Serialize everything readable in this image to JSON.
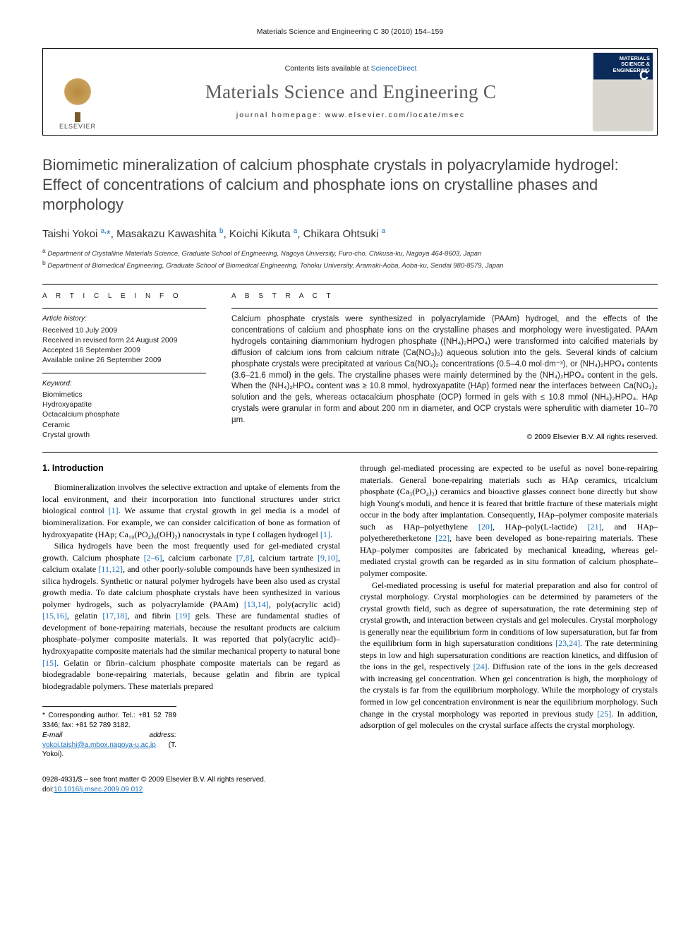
{
  "running_header": "Materials Science and Engineering C 30 (2010) 154–159",
  "banner": {
    "contents_prefix": "Contents lists available at ",
    "contents_link": "ScienceDirect",
    "journal_name": "Materials Science and Engineering C",
    "homepage_label": "journal homepage: www.elsevier.com/locate/msec",
    "elsevier_label": "ELSEVIER",
    "cover_title": "MATERIALS SCIENCE & ENGINEERING",
    "cover_letter": "C"
  },
  "title": "Biomimetic mineralization of calcium phosphate crystals in polyacrylamide hydrogel: Effect of concentrations of calcium and phosphate ions on crystalline phases and morphology",
  "authors_html": "Taishi Yokoi <sup>a,</sup><span class='star'>*</span>, Masakazu Kawashita <sup>b</sup>, Koichi Kikuta <sup>a</sup>, Chikara Ohtsuki <sup>a</sup>",
  "affiliations": {
    "a": "Department of Crystalline Materials Science, Graduate School of Engineering, Nagoya University, Furo-cho, Chikusa-ku, Nagoya 464-8603, Japan",
    "b": "Department of Biomedical Engineering, Graduate School of Biomedical Engineering, Tohoku University, Aramaki-Aoba, Aoba-ku, Sendai 980-8579, Japan"
  },
  "article_info": {
    "heading": "A R T I C L E   I N F O",
    "history_label": "Article history:",
    "history": [
      "Received 10 July 2009",
      "Received in revised form 24 August 2009",
      "Accepted 16 September 2009",
      "Available online 26 September 2009"
    ],
    "keywords_label": "Keyword:",
    "keywords": [
      "Biomimetics",
      "Hydroxyapatite",
      "Octacalcium phosphate",
      "Ceramic",
      "Crystal growth"
    ]
  },
  "abstract": {
    "heading": "A B S T R A C T",
    "text": "Calcium phosphate crystals were synthesized in polyacrylamide (PAAm) hydrogel, and the effects of the concentrations of calcium and phosphate ions on the crystalline phases and morphology were investigated. PAAm hydrogels containing diammonium hydrogen phosphate ((NH₄)₂HPO₄) were transformed into calcified materials by diffusion of calcium ions from calcium nitrate (Ca(NO₃)₂) aqueous solution into the gels. Several kinds of calcium phosphate crystals were precipitated at various Ca(NO₃)₂ concentrations (0.5–4.0 mol·dm⁻³), or (NH₄)₂HPO₄ contents (3.6–21.6 mmol) in the gels. The crystalline phases were mainly determined by the (NH₄)₂HPO₄ content in the gels. When the (NH₄)₂HPO₄ content was ≥ 10.8 mmol, hydroxyapatite (HAp) formed near the interfaces between Ca(NO₃)₂ solution and the gels, whereas octacalcium phosphate (OCP) formed in gels with ≤ 10.8 mmol (NH₄)₂HPO₄. HAp crystals were granular in form and about 200 nm in diameter, and OCP crystals were spherulitic with diameter 10–70 µm.",
    "copyright": "© 2009 Elsevier B.V. All rights reserved."
  },
  "body": {
    "section_heading": "1. Introduction",
    "p1": "Biomineralization involves the selective extraction and uptake of elements from the local environment, and their incorporation into functional structures under strict biological control [1]. We assume that crystal growth in gel media is a model of biomineralization. For example, we can consider calcification of bone as formation of hydroxyapatite (HAp; Ca₁₀(PO₄)₆(OH)₂) nanocrystals in type I collagen hydrogel [1].",
    "p2": "Silica hydrogels have been the most frequently used for gel-mediated crystal growth. Calcium phosphate [2–6], calcium carbonate [7,8], calcium tartrate [9,10], calcium oxalate [11,12], and other poorly-soluble compounds have been synthesized in silica hydrogels. Synthetic or natural polymer hydrogels have been also used as crystal growth media. To date calcium phosphate crystals have been synthesized in various polymer hydrogels, such as polyacrylamide (PAAm) [13,14], poly(acrylic acid) [15,16], gelatin [17,18], and fibrin [19] gels. These are fundamental studies of development of bone-repairing materials, because the resultant products are calcium phosphate–polymer composite materials. It was reported that poly(acrylic acid)–hydroxyapatite composite materials had the similar mechanical property to natural bone [15]. Gelatin or fibrin–calcium phosphate composite materials can be regard as biodegradable bone-repairing materials, because gelatin and fibrin are typical biodegradable polymers. These materials prepared",
    "p3": "through gel-mediated processing are expected to be useful as novel bone-repairing materials. General bone-repairing materials such as HAp ceramics, tricalcium phosphate (Ca₃(PO₄)₂) ceramics and bioactive glasses connect bone directly but show high Young's moduli, and hence it is feared that brittle fracture of these materials might occur in the body after implantation. Consequently, HAp–polymer composite materials such as HAp–polyethylene [20], HAp–poly(L-lactide) [21], and HAp–polyetheretherketone [22], have been developed as bone-repairing materials. These HAp–polymer composites are fabricated by mechanical kneading, whereas gel-mediated crystal growth can be regarded as in situ formation of calcium phosphate–polymer composite.",
    "p4": "Gel-mediated processing is useful for material preparation and also for control of crystal morphology. Crystal morphologies can be determined by parameters of the crystal growth field, such as degree of supersaturation, the rate determining step of crystal growth, and interaction between crystals and gel molecules. Crystal morphology is generally near the equilibrium form in conditions of low supersaturation, but far from the equilibrium form in high supersaturation conditions [23,24]. The rate determining steps in low and high supersaturation conditions are reaction kinetics, and diffusion of the ions in the gel, respectively [24]. Diffusion rate of the ions in the gels decreased with increasing gel concentration. When gel concentration is high, the morphology of the crystals is far from the equilibrium morphology. While the morphology of crystals formed in low gel concentration environment is near the equilibrium morphology. Such change in the crystal morphology was reported in previous study [25]. In addition, adsorption of gel molecules on the crystal surface affects the crystal morphology."
  },
  "correspondence": {
    "line1": "* Corresponding author. Tel.: +81 52 789 3346; fax: +81 52 789 3182.",
    "line2_label": "E-mail address:",
    "email": "yokoi.taishi@a.mbox.nagoya-u.ac.jp",
    "line2_tail": " (T. Yokoi)."
  },
  "footer": {
    "line1": "0928-4931/$ – see front matter © 2009 Elsevier B.V. All rights reserved.",
    "doi_label": "doi:",
    "doi": "10.1016/j.msec.2009.09.012"
  },
  "colors": {
    "link": "#1a6eb8",
    "title_gray": "#464646",
    "text": "#222222",
    "elsevier_orange": "#c9a05a",
    "cover_blue": "#0a2a5a"
  }
}
